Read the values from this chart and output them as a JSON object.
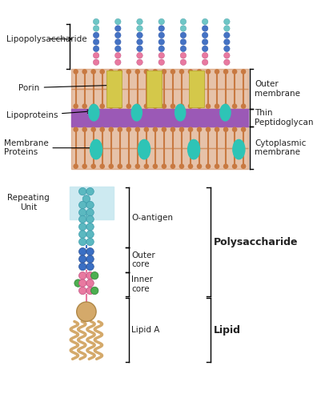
{
  "bg_color": "#ffffff",
  "membrane_color": "#c87941",
  "peptidoglycan_color": "#9b59b6",
  "porin_color": "#d4c84a",
  "teal_color": "#2ec4b6",
  "lps_cyan": "#6ec6c6",
  "lps_blue": "#4472c4",
  "lps_pink": "#e879a0",
  "chain_teal": "#5bb8c0",
  "chain_blue": "#3a6fc4",
  "chain_pink": "#e879a0",
  "chain_green": "#4caf50",
  "lipid_color": "#d4a96a",
  "rep_box_color": "#c8e8f0",
  "label_color": "#222222",
  "labels": {
    "lipopolysaccharide": "Lipopolysaccharide",
    "porin": "Porin",
    "lipoproteins": "Lipoproteins",
    "membrane_proteins": "Membrane\nProteins",
    "outer_membrane": "Outer\nmembrane",
    "thin_peptidoglycan": "Thin\nPeptidoglycan",
    "cytoplasmic_membrane": "Cytoplasmic\nmembrane",
    "repeating_unit": "Repeating\nUnit",
    "o_antigen": "O-antigen",
    "outer_core": "Outer\ncore",
    "inner_core": "Inner\ncore",
    "lipid_a": "Lipid A",
    "polysaccharide": "Polysaccharide",
    "lipid": "Lipid"
  }
}
